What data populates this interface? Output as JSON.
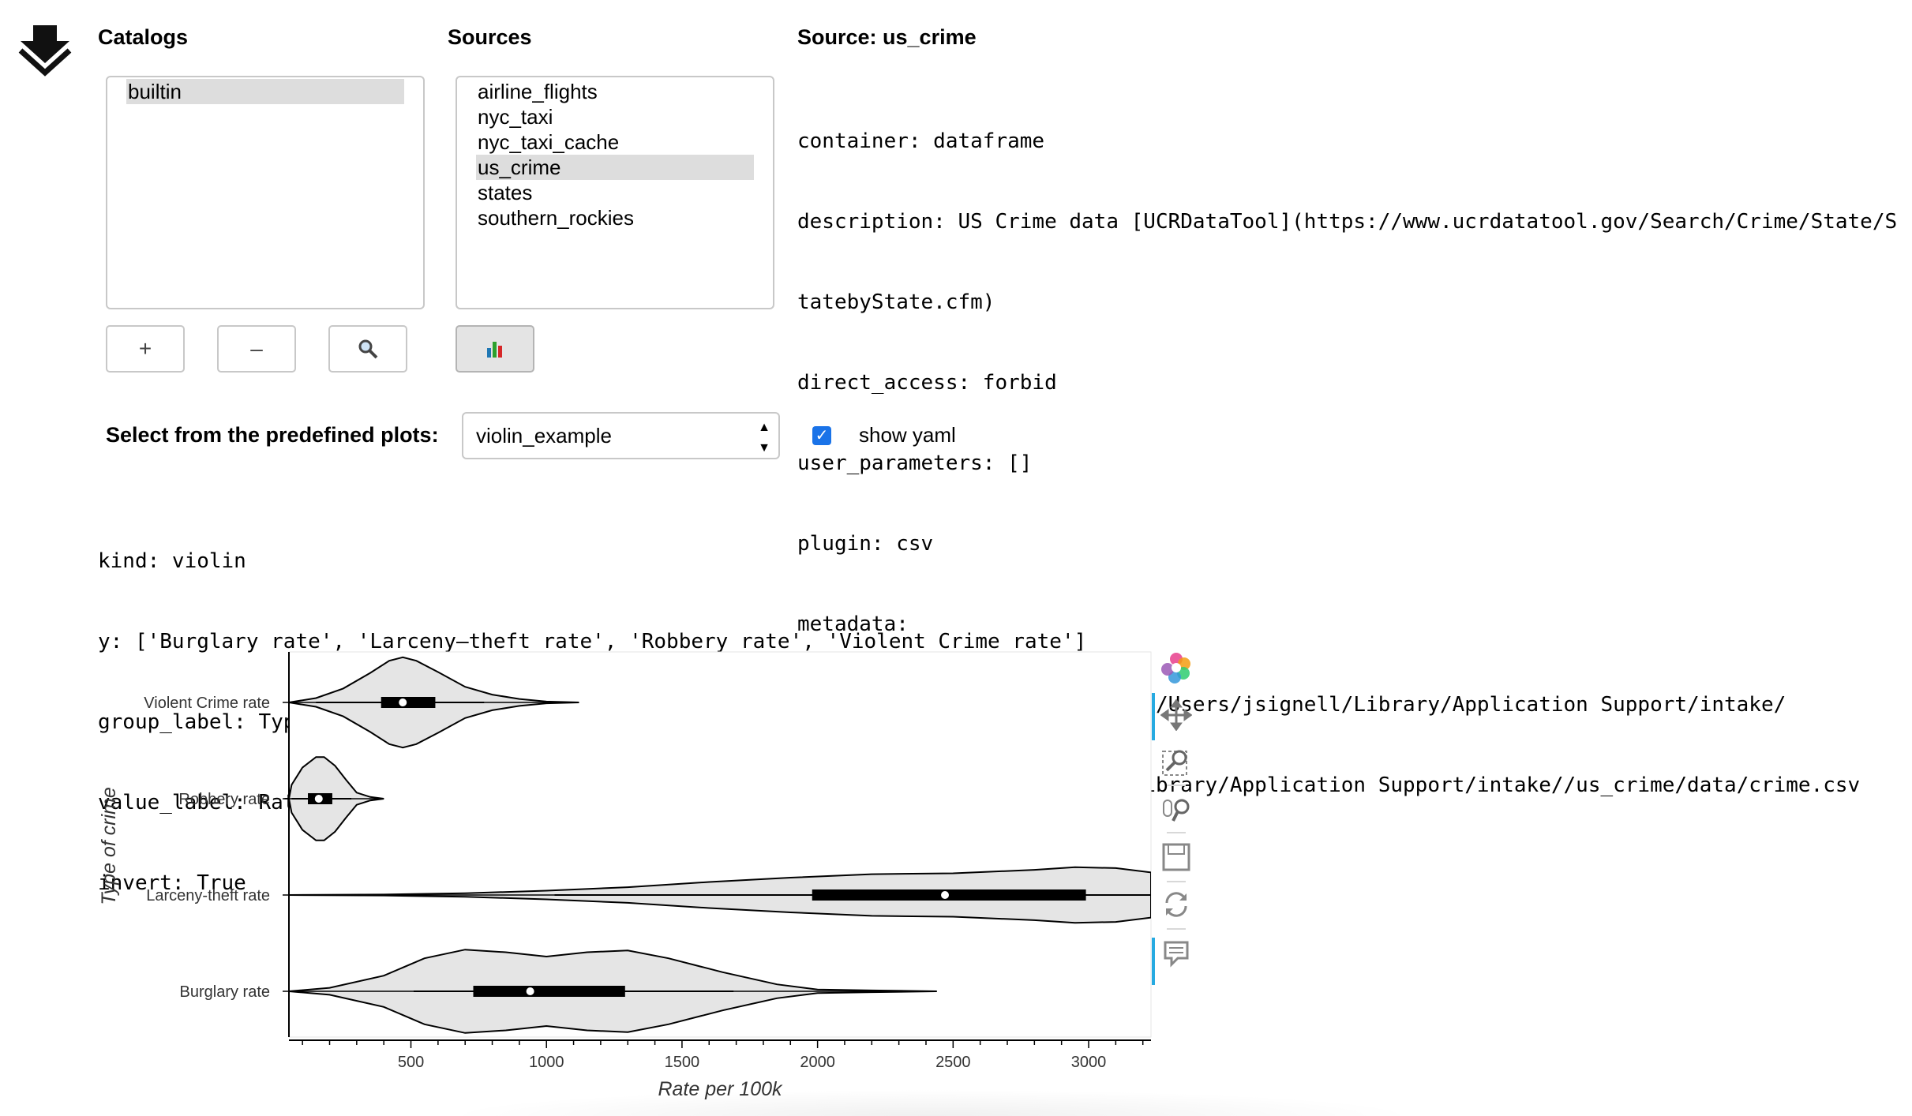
{
  "catalogs": {
    "heading": "Catalogs",
    "items": [
      "builtin"
    ],
    "selected_index": 0,
    "buttons": {
      "add": "+",
      "remove": "–",
      "search": "🔍"
    }
  },
  "sources": {
    "heading": "Sources",
    "items": [
      "airline_flights",
      "nyc_taxi",
      "nyc_taxi_cache",
      "us_crime",
      "states",
      "southern_rockies"
    ],
    "selected_index": 3,
    "plot_button": "plot-icon"
  },
  "source_info": {
    "heading": "Source: us_crime",
    "lines": [
      "container: dataframe",
      "description: US Crime data [UCRDataTool](https://www.ucrdatatool.gov/Search/Crime/State/S",
      "tatebyState.cfm)",
      "direct_access: forbid",
      "user_parameters: []",
      "plugin: csv",
      "metadata:",
      "args: metadata: catalog_dir: /Users/jsignell/Library/Application Support/intake/",
      "  urlpath: /Users/jsignell/Library/Application Support/intake//us_crime/data/crime.csv"
    ]
  },
  "plot_select": {
    "label": "Select from the predefined plots:",
    "value": "violin_example",
    "show_yaml_label": "show yaml",
    "show_yaml_checked": true
  },
  "yaml": {
    "lines": [
      "kind: violin",
      "y: ['Burglary rate', 'Larceny–theft rate', 'Robbery rate', 'Violent Crime rate']",
      "group_label: Type of crime",
      "value_label: Rate per 100k",
      "invert: True"
    ]
  },
  "toolbar": {
    "icons": [
      "bokeh-logo-icon",
      "pan-icon",
      "box-zoom-icon",
      "wheel-zoom-icon",
      "save-icon",
      "reset-icon",
      "hover-icon"
    ]
  },
  "chart_data": {
    "type": "violin",
    "orientation": "horizontal",
    "xlabel": "Rate per 100k",
    "ylabel": "Type of crime",
    "xlim": [
      50,
      3230
    ],
    "x_ticks": [
      500,
      1000,
      1500,
      2000,
      2500,
      3000
    ],
    "categories": [
      "Violent Crime rate",
      "Robbery rate",
      "Larceny-theft rate",
      "Burglary rate"
    ],
    "colors": {
      "fill": "#e5e5e5",
      "stroke": "#000000",
      "box": "#000000",
      "median": "#ffffff"
    },
    "series": [
      {
        "name": "Violent Crime rate",
        "whisker": [
          150,
          770
        ],
        "q1": 390,
        "median": 470,
        "q3": 590,
        "extent": [
          50,
          1120
        ],
        "density": [
          [
            50,
            0
          ],
          [
            150,
            5
          ],
          [
            250,
            16
          ],
          [
            350,
            34
          ],
          [
            420,
            48
          ],
          [
            470,
            52
          ],
          [
            520,
            48
          ],
          [
            600,
            35
          ],
          [
            700,
            18
          ],
          [
            800,
            9
          ],
          [
            900,
            4
          ],
          [
            1000,
            1
          ],
          [
            1120,
            0
          ]
        ]
      },
      {
        "name": "Robbery rate",
        "whisker": [
          60,
          280
        ],
        "q1": 120,
        "median": 160,
        "q3": 210,
        "extent": [
          50,
          400
        ],
        "density": [
          [
            50,
            0
          ],
          [
            60,
            16
          ],
          [
            100,
            36
          ],
          [
            150,
            48
          ],
          [
            180,
            48
          ],
          [
            220,
            38
          ],
          [
            260,
            22
          ],
          [
            300,
            7
          ],
          [
            350,
            2
          ],
          [
            400,
            0
          ]
        ]
      },
      {
        "name": "Larceny-theft rate",
        "whisker": [
          1030,
          3230
        ],
        "q1": 1980,
        "median": 2470,
        "q3": 2990,
        "extent": [
          50,
          3230
        ],
        "density": [
          [
            50,
            0
          ],
          [
            400,
            0.5
          ],
          [
            700,
            2
          ],
          [
            1000,
            5
          ],
          [
            1300,
            9
          ],
          [
            1600,
            15
          ],
          [
            1900,
            20
          ],
          [
            2200,
            24
          ],
          [
            2500,
            25
          ],
          [
            2800,
            29
          ],
          [
            2950,
            32
          ],
          [
            3100,
            31
          ],
          [
            3230,
            26
          ]
        ]
      },
      {
        "name": "Burglary rate",
        "whisker": [
          510,
          1690
        ],
        "q1": 730,
        "median": 940,
        "q3": 1290,
        "extent": [
          50,
          2440
        ],
        "density": [
          [
            50,
            0
          ],
          [
            200,
            4
          ],
          [
            400,
            18
          ],
          [
            550,
            38
          ],
          [
            700,
            48
          ],
          [
            850,
            45
          ],
          [
            1000,
            40
          ],
          [
            1150,
            45
          ],
          [
            1300,
            47
          ],
          [
            1450,
            38
          ],
          [
            1650,
            22
          ],
          [
            1850,
            8
          ],
          [
            2000,
            2
          ],
          [
            2200,
            1
          ],
          [
            2440,
            0
          ]
        ]
      }
    ]
  }
}
